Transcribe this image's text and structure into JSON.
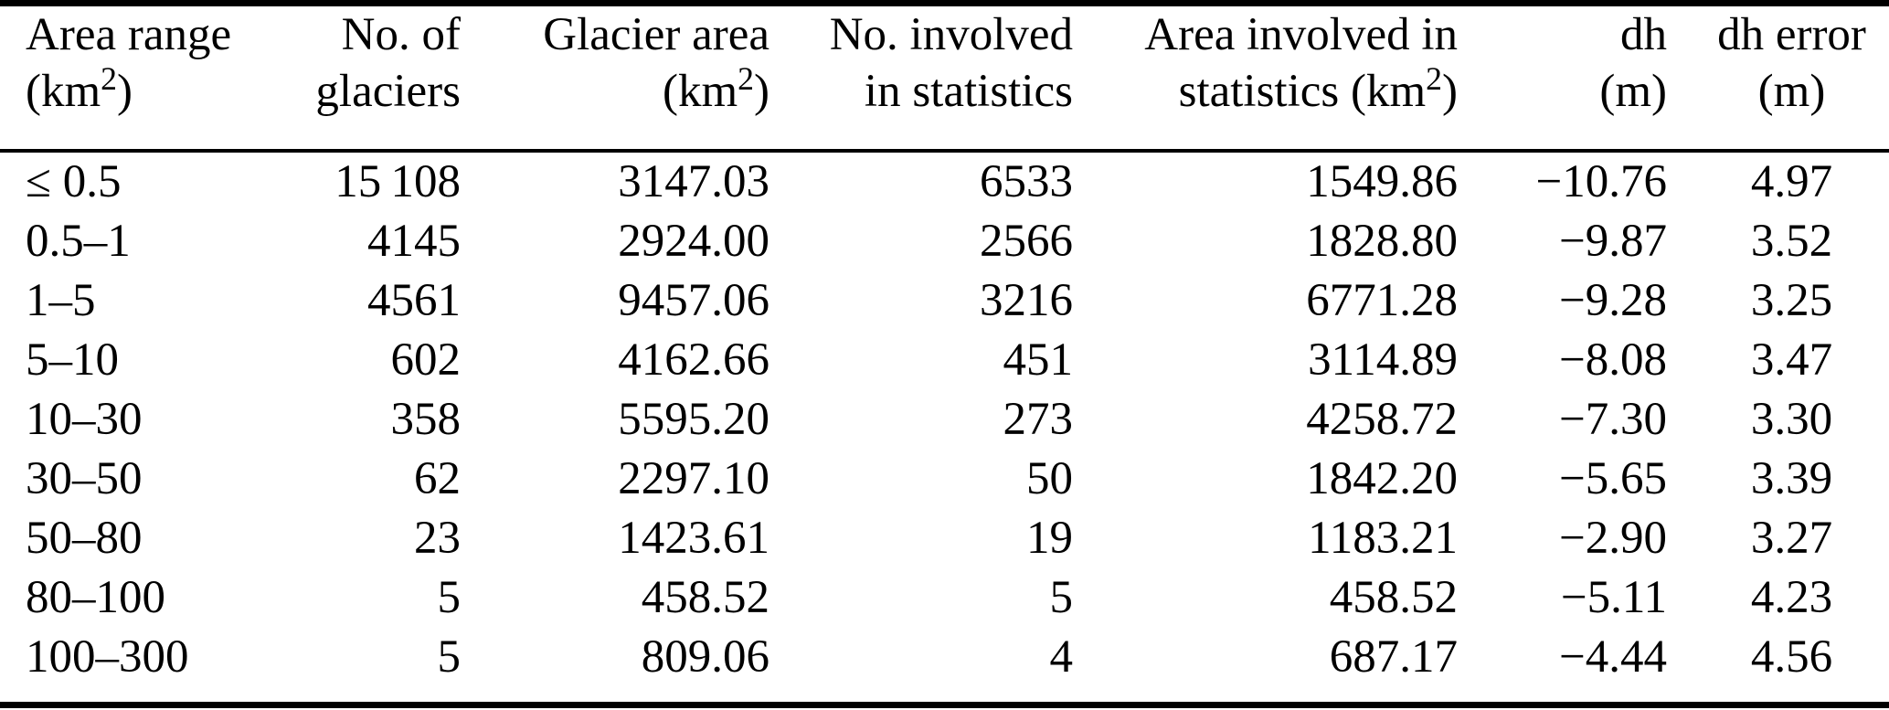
{
  "table": {
    "columns": [
      {
        "id": "area-range",
        "line1": "Area range",
        "line2_pre": "(km",
        "line2_sup": "2",
        "line2_post": ")"
      },
      {
        "id": "glacier-count",
        "line1": "No. of",
        "line2_pre": "glaciers",
        "line2_sup": "",
        "line2_post": ""
      },
      {
        "id": "glacier-area",
        "line1": "Glacier area",
        "line2_pre": "(km",
        "line2_sup": "2",
        "line2_post": ")"
      },
      {
        "id": "count-in-statistics",
        "line1": "No. involved",
        "line2_pre": "in statistics",
        "line2_sup": "",
        "line2_post": ""
      },
      {
        "id": "area-in-statistics",
        "line1": "Area involved in",
        "line2_pre": "statistics (km",
        "line2_sup": "2",
        "line2_post": ")"
      },
      {
        "id": "dh",
        "line1": "dh",
        "line2_pre": "(m)",
        "line2_sup": "",
        "line2_post": ""
      },
      {
        "id": "dh-error",
        "line1": "dh error",
        "line2_pre": "(m)",
        "line2_sup": "",
        "line2_post": ""
      }
    ],
    "rows": [
      [
        "≤ 0.5",
        "15 108",
        "3147.03",
        "6533",
        "1549.86",
        "−10.76",
        "4.97"
      ],
      [
        "0.5–1",
        "4145",
        "2924.00",
        "2566",
        "1828.80",
        "−9.87",
        "3.52"
      ],
      [
        "1–5",
        "4561",
        "9457.06",
        "3216",
        "6771.28",
        "−9.28",
        "3.25"
      ],
      [
        "5–10",
        "602",
        "4162.66",
        "451",
        "3114.89",
        "−8.08",
        "3.47"
      ],
      [
        "10–30",
        "358",
        "5595.20",
        "273",
        "4258.72",
        "−7.30",
        "3.30"
      ],
      [
        "30–50",
        "62",
        "2297.10",
        "50",
        "1842.20",
        "−5.65",
        "3.39"
      ],
      [
        "50–80",
        "23",
        "1423.61",
        "19",
        "1183.21",
        "−2.90",
        "3.27"
      ],
      [
        "80–100",
        "5",
        "458.52",
        "5",
        "458.52",
        "−5.11",
        "4.23"
      ],
      [
        "100–300",
        "5",
        "809.06",
        "4",
        "687.17",
        "−4.44",
        "4.56"
      ]
    ]
  },
  "colors": {
    "text": "#000000",
    "background": "#ffffff",
    "rule": "#000000"
  }
}
